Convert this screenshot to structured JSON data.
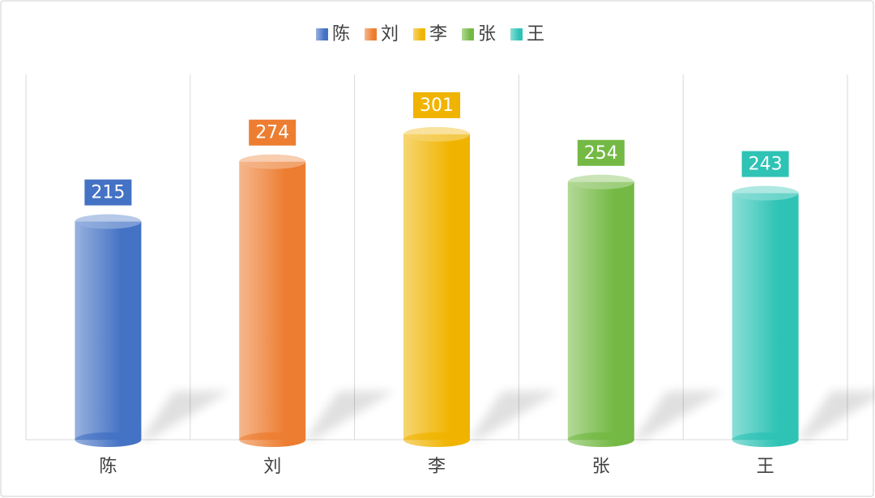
{
  "chart_data": {
    "type": "bar",
    "style": "cylinder",
    "categories": [
      "陈",
      "刘",
      "李",
      "张",
      "王"
    ],
    "values": [
      215,
      274,
      301,
      254,
      243
    ],
    "colors": [
      "#4472c4",
      "#ed7d31",
      "#f0b400",
      "#74b944",
      "#2ec3b5"
    ],
    "ylim": [
      0,
      360
    ],
    "legend": "top",
    "data_labels": true
  }
}
